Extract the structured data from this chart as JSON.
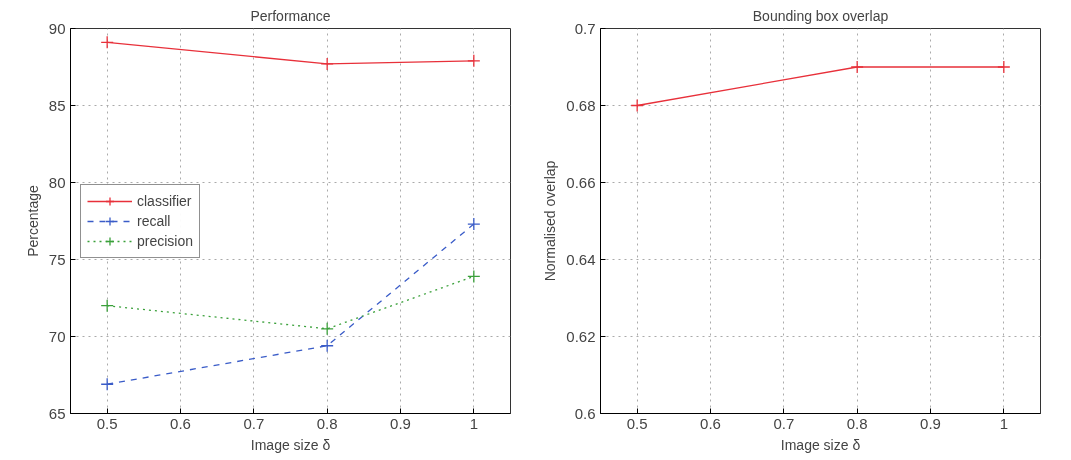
{
  "chart_data": [
    {
      "type": "line",
      "title": "Performance",
      "xlabel": "Image size δ",
      "ylabel": "Percentage",
      "x": [
        0.5,
        0.8,
        1
      ],
      "xlim": [
        0.45,
        1.05
      ],
      "xticks": [
        0.5,
        0.6,
        0.7,
        0.8,
        0.9,
        1
      ],
      "ylim": [
        65,
        90
      ],
      "yticks": [
        65,
        70,
        75,
        80,
        85,
        90
      ],
      "grid": true,
      "legend": "left",
      "marker": "cross",
      "series": [
        {
          "name": "classifier",
          "color": "#e8303a",
          "values": [
            89.1,
            87.7,
            87.9
          ],
          "line_style": "solid"
        },
        {
          "name": "recall",
          "color": "#3a5cc8",
          "values": [
            66.9,
            69.4,
            77.3
          ],
          "line_style": "dashed"
        },
        {
          "name": "precision",
          "color": "#3aa03a",
          "values": [
            72.0,
            70.5,
            73.9
          ],
          "line_style": "dotted"
        }
      ]
    },
    {
      "type": "line",
      "title": "Bounding box overlap",
      "xlabel": "Image size δ",
      "ylabel": "Normalised overlap",
      "x": [
        0.5,
        0.8,
        1
      ],
      "xlim": [
        0.45,
        1.05
      ],
      "xticks": [
        0.5,
        0.6,
        0.7,
        0.8,
        0.9,
        1
      ],
      "ylim": [
        0.6,
        0.7
      ],
      "yticks": [
        0.6,
        0.62,
        0.64,
        0.66,
        0.68,
        0.7
      ],
      "grid": true,
      "marker": "cross",
      "series": [
        {
          "color": "#e8303a",
          "values": [
            0.68,
            0.69,
            0.69
          ],
          "line_style": "solid"
        }
      ]
    }
  ]
}
